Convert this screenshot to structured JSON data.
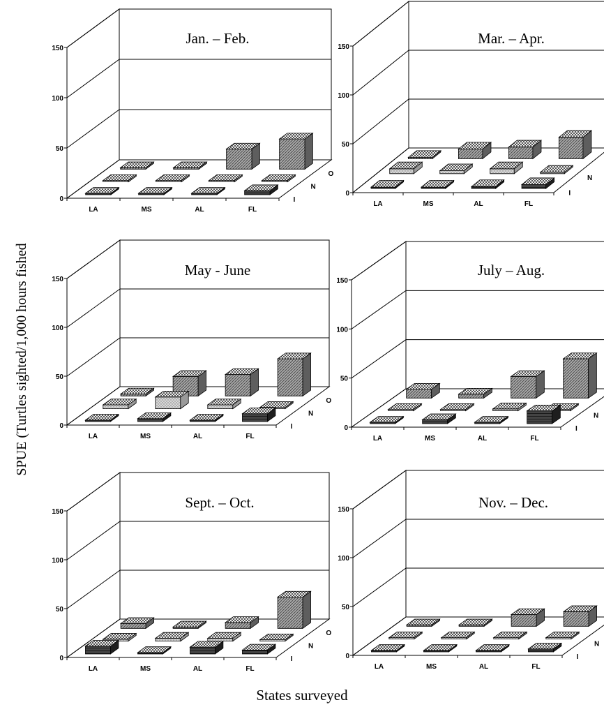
{
  "figure": {
    "ylabel": "SPUE (Turtles sighted/1,000 hours fished",
    "xlabel": "States surveyed"
  },
  "colors": {
    "I": "#3a3a3a",
    "N": "#bfbfbf",
    "O": "#8f8f8f"
  },
  "chart_data": [
    {
      "type": "bar",
      "title": "Jan. – Feb.",
      "categories": [
        "LA",
        "MS",
        "AL",
        "FL"
      ],
      "depth_labels": [
        "I",
        "N",
        "O"
      ],
      "ylim": [
        0,
        150
      ],
      "yticks": [
        0,
        50,
        100,
        150
      ],
      "series": [
        {
          "name": "I",
          "values": [
            1,
            1,
            1,
            4
          ]
        },
        {
          "name": "N",
          "values": [
            1,
            1,
            1,
            1
          ]
        },
        {
          "name": "O",
          "values": [
            1,
            1,
            20,
            30
          ]
        }
      ]
    },
    {
      "type": "bar",
      "title": "Mar. – Apr.",
      "categories": [
        "LA",
        "MS",
        "AL",
        "FL"
      ],
      "depth_labels": [
        "I",
        "N",
        "O"
      ],
      "ylim": [
        0,
        150
      ],
      "yticks": [
        0,
        50,
        100,
        150
      ],
      "series": [
        {
          "name": "I",
          "values": [
            1,
            1,
            2,
            4
          ]
        },
        {
          "name": "N",
          "values": [
            5,
            3,
            5,
            1
          ]
        },
        {
          "name": "O",
          "values": [
            1,
            10,
            12,
            22
          ]
        }
      ]
    },
    {
      "type": "bar",
      "title": "May - June",
      "categories": [
        "LA",
        "MS",
        "AL",
        "FL"
      ],
      "depth_labels": [
        "I",
        "N",
        "O"
      ],
      "ylim": [
        0,
        150
      ],
      "yticks": [
        0,
        50,
        100,
        150
      ],
      "series": [
        {
          "name": "I",
          "values": [
            1,
            3,
            1,
            8
          ]
        },
        {
          "name": "N",
          "values": [
            4,
            12,
            4,
            1
          ]
        },
        {
          "name": "O",
          "values": [
            2,
            20,
            22,
            38
          ]
        }
      ]
    },
    {
      "type": "bar",
      "title": "July – Aug.",
      "categories": [
        "LA",
        "MS",
        "AL",
        "FL"
      ],
      "depth_labels": [
        "I",
        "N",
        "O"
      ],
      "ylim": [
        0,
        150
      ],
      "yticks": [
        0,
        50,
        100,
        150
      ],
      "series": [
        {
          "name": "I",
          "values": [
            1,
            4,
            1,
            13
          ]
        },
        {
          "name": "N",
          "values": [
            1,
            1,
            2,
            1
          ]
        },
        {
          "name": "O",
          "values": [
            9,
            4,
            22,
            40
          ]
        }
      ]
    },
    {
      "type": "bar",
      "title": "Sept. – Oct.",
      "categories": [
        "LA",
        "MS",
        "AL",
        "FL"
      ],
      "depth_labels": [
        "I",
        "N",
        "O"
      ],
      "ylim": [
        0,
        150
      ],
      "yticks": [
        0,
        50,
        100,
        150
      ],
      "series": [
        {
          "name": "I",
          "values": [
            8,
            1,
            7,
            4
          ]
        },
        {
          "name": "N",
          "values": [
            2,
            3,
            3,
            1
          ]
        },
        {
          "name": "O",
          "values": [
            5,
            1,
            6,
            32
          ]
        }
      ]
    },
    {
      "type": "bar",
      "title": "Nov. – Dec.",
      "categories": [
        "LA",
        "MS",
        "AL",
        "FL"
      ],
      "depth_labels": [
        "I",
        "N",
        "O"
      ],
      "ylim": [
        0,
        150
      ],
      "yticks": [
        0,
        50,
        100,
        150
      ],
      "series": [
        {
          "name": "I",
          "values": [
            1,
            1,
            1,
            3
          ]
        },
        {
          "name": "N",
          "values": [
            1,
            1,
            1,
            1
          ]
        },
        {
          "name": "O",
          "values": [
            1,
            1,
            12,
            15
          ]
        }
      ]
    }
  ]
}
